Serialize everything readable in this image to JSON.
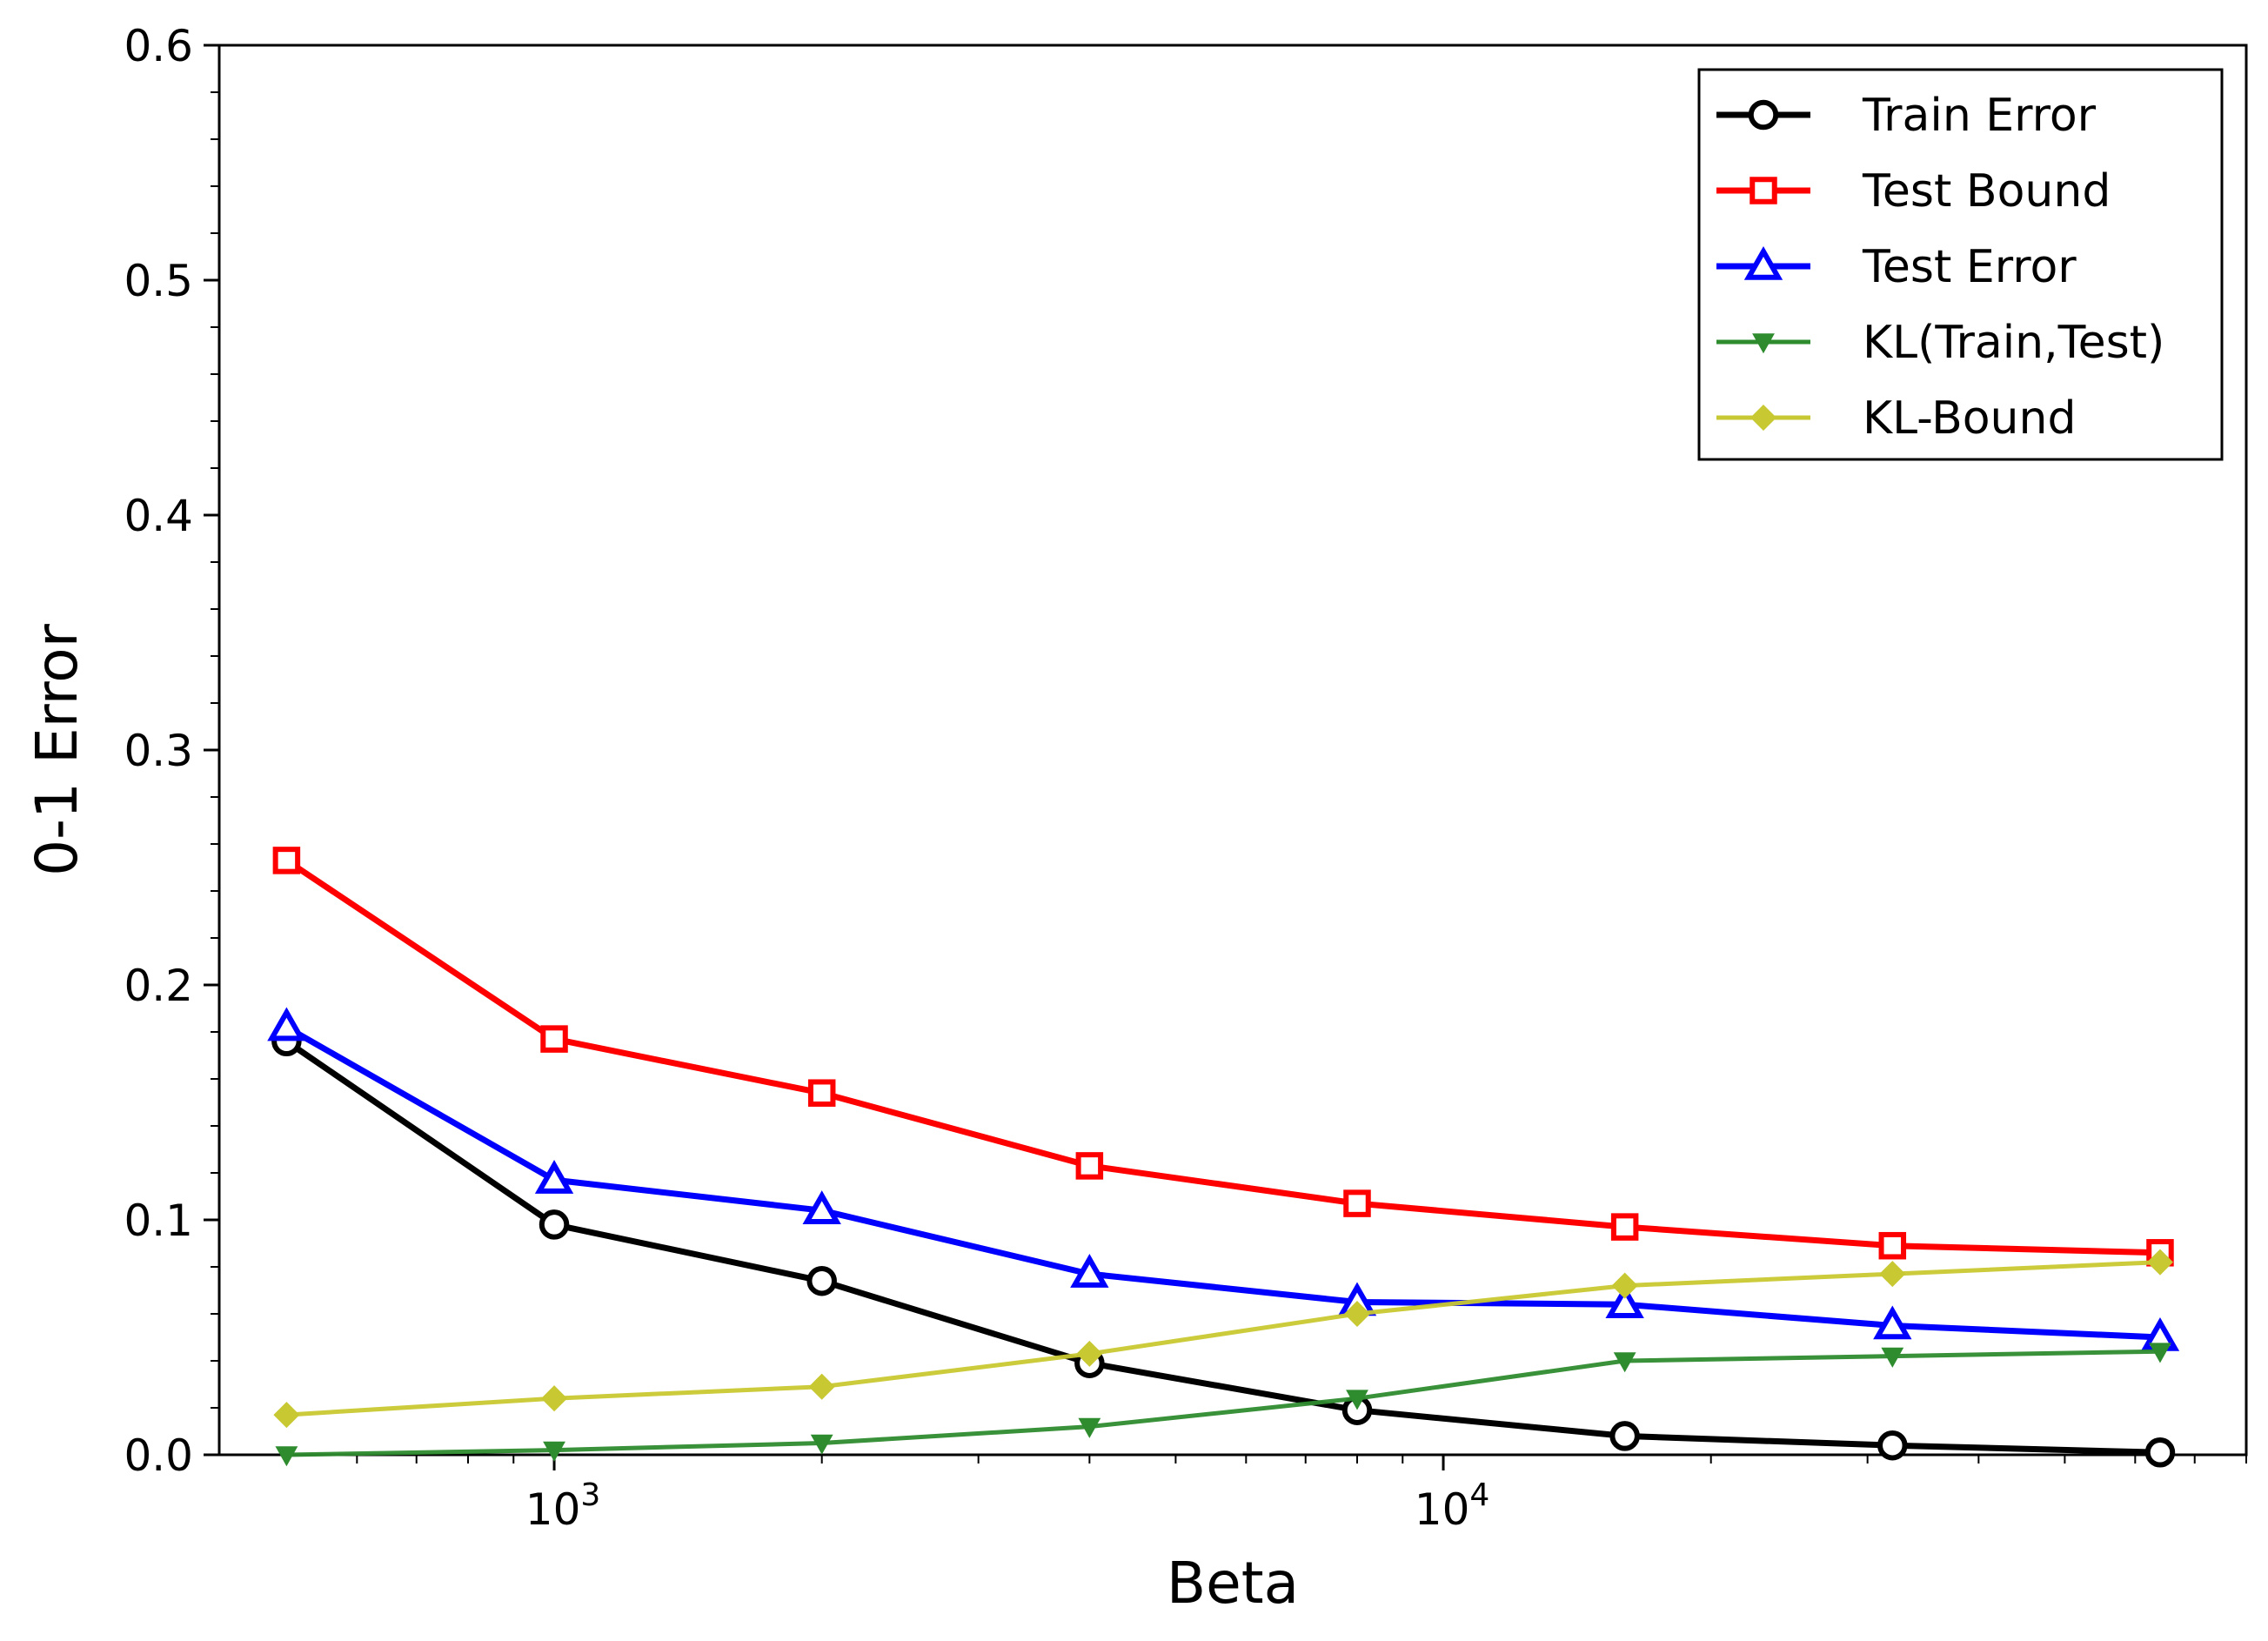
{
  "chart_data": {
    "type": "line",
    "xscale": "log",
    "xlabel": "Beta",
    "ylabel": "0-1 Error",
    "xlim": [
      420,
      80000
    ],
    "ylim": [
      0,
      0.6
    ],
    "yticks": [
      "0.0",
      "0.1",
      "0.2",
      "0.3",
      "0.4",
      "0.5",
      "0.6"
    ],
    "xticks": [
      {
        "value": 1000,
        "base": "10",
        "exp": "3"
      },
      {
        "value": 10000,
        "base": "10",
        "exp": "4"
      }
    ],
    "grid": false,
    "legend_position": "top-right",
    "x": [
      500,
      1000,
      2000,
      4000,
      8000,
      16000,
      32000,
      64000
    ],
    "series": [
      {
        "name": "Train Error",
        "color": "#000000",
        "marker": "circle",
        "values": [
          0.176,
          0.098,
          0.074,
          0.039,
          0.019,
          0.008,
          0.004,
          0.001
        ]
      },
      {
        "name": "Test Bound",
        "color": "#ff0000",
        "marker": "square",
        "values": [
          0.253,
          0.177,
          0.154,
          0.123,
          0.107,
          0.097,
          0.089,
          0.086
        ]
      },
      {
        "name": "Test Error",
        "color": "#0000ff",
        "marker": "triangle",
        "values": [
          0.182,
          0.117,
          0.104,
          0.077,
          0.065,
          0.064,
          0.055,
          0.05
        ]
      },
      {
        "name": "KL(Train,Test)",
        "color": "#2e8b2e",
        "marker": "triangle-down",
        "values": [
          0.0,
          0.002,
          0.005,
          0.012,
          0.024,
          0.04,
          0.042,
          0.044
        ]
      },
      {
        "name": "KL-Bound",
        "color": "#c8c832",
        "marker": "diamond",
        "values": [
          0.017,
          0.024,
          0.029,
          0.043,
          0.06,
          0.072,
          0.077,
          0.082
        ]
      }
    ]
  }
}
